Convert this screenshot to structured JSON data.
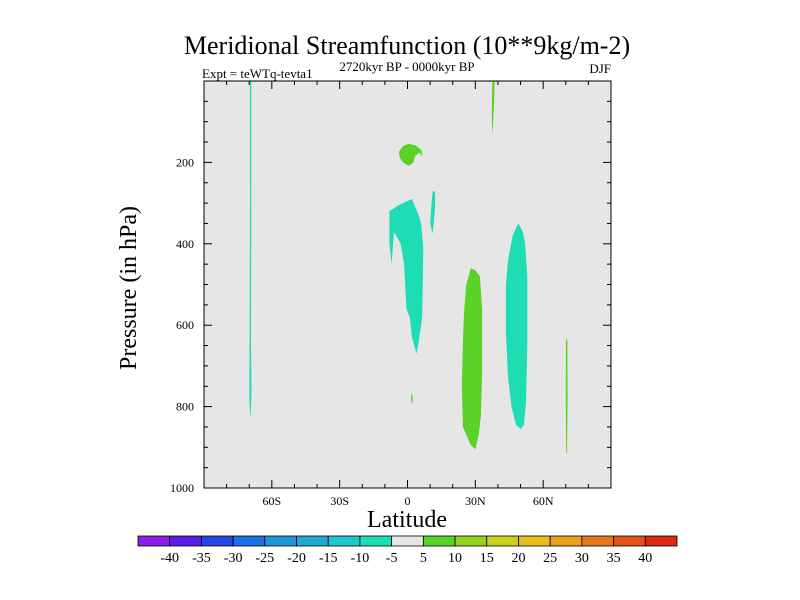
{
  "chart_data": {
    "type": "filled-contour",
    "title": "Meridional Streamfunction (10**9kg/m-2)",
    "left_label": "Expt = teWTq-tevta1",
    "center_label": "2720kyr BP - 0000kyr BP",
    "right_label": "DJF",
    "xlabel": "Latitude",
    "ylabel": "Pressure (in hPa)",
    "xlim": [
      -90,
      90
    ],
    "ylim": [
      1000,
      0
    ],
    "x_ticks": [
      {
        "value": -60,
        "label": "60S"
      },
      {
        "value": -30,
        "label": "30S"
      },
      {
        "value": 0,
        "label": "0"
      },
      {
        "value": 30,
        "label": "30N"
      },
      {
        "value": 60,
        "label": "60N"
      }
    ],
    "y_ticks": [
      {
        "value": 200,
        "label": "200"
      },
      {
        "value": 400,
        "label": "400"
      },
      {
        "value": 600,
        "label": "600"
      },
      {
        "value": 800,
        "label": "800"
      },
      {
        "value": 1000,
        "label": "1000"
      }
    ],
    "background_color": "#e6e6e6",
    "colorbar": {
      "labels": [
        "-40",
        "-35",
        "-30",
        "-25",
        "-20",
        "-15",
        "-10",
        "-5",
        "5",
        "10",
        "15",
        "20",
        "25",
        "30",
        "35",
        "40"
      ],
      "colors": [
        "#8c1ee6",
        "#5a1ee6",
        "#2846e6",
        "#1e6ee6",
        "#1e96dc",
        "#1eaad2",
        "#1ec8c8",
        "#1edcb4",
        "#e6e6e6",
        "#5ad228",
        "#96d21e",
        "#c8d21e",
        "#e6be1e",
        "#e6a01e",
        "#e6781e",
        "#e6501e",
        "#dc2814"
      ]
    },
    "regions": [
      {
        "name": "sh-polar-strip",
        "value_class": "-5",
        "color": "#1edcb4",
        "points": [
          [
            -69.7,
            0
          ],
          [
            -69.1,
            0
          ],
          [
            -69.1,
            290
          ],
          [
            -69.2,
            640
          ],
          [
            -69.0,
            760
          ],
          [
            -69.4,
            830
          ],
          [
            -69.9,
            790
          ],
          [
            -69.9,
            720
          ],
          [
            -69.6,
            290
          ]
        ]
      },
      {
        "name": "tropical-negative-cell",
        "value_class": "-5",
        "color": "#1edcb4",
        "points": [
          [
            -8,
            320
          ],
          [
            -4,
            305
          ],
          [
            2,
            290
          ],
          [
            5,
            330
          ],
          [
            6,
            350
          ],
          [
            7,
            410
          ],
          [
            6.5,
            580
          ],
          [
            5,
            640
          ],
          [
            4,
            670
          ],
          [
            2,
            630
          ],
          [
            1,
            580
          ],
          [
            -0.5,
            560
          ],
          [
            -1.5,
            450
          ],
          [
            -3,
            400
          ],
          [
            -6,
            370
          ],
          [
            -7,
            450
          ],
          [
            -8,
            400
          ]
        ]
      },
      {
        "name": "upper-tropical-sliver",
        "value_class": "-5",
        "color": "#1edcb4",
        "points": [
          [
            11.2,
            270
          ],
          [
            12.2,
            272
          ],
          [
            12.2,
            310
          ],
          [
            11.6,
            350
          ],
          [
            11.1,
            375
          ],
          [
            10.1,
            350
          ],
          [
            10.6,
            300
          ]
        ]
      },
      {
        "name": "nh-midlat-negative-cell",
        "value_class": "-5",
        "color": "#1edcb4",
        "points": [
          [
            49,
            350
          ],
          [
            51,
            370
          ],
          [
            52,
            400
          ],
          [
            53,
            480
          ],
          [
            53,
            650
          ],
          [
            52.4,
            790
          ],
          [
            51.5,
            845
          ],
          [
            50,
            855
          ],
          [
            48,
            845
          ],
          [
            46,
            800
          ],
          [
            44.5,
            730
          ],
          [
            43.5,
            620
          ],
          [
            43.5,
            500
          ],
          [
            44.5,
            440
          ],
          [
            46.5,
            380
          ]
        ]
      },
      {
        "name": "upper-positive-blob",
        "value_class": "5",
        "color": "#5ad228",
        "points": [
          [
            -3.7,
            173
          ],
          [
            -2,
            160
          ],
          [
            0.5,
            154
          ],
          [
            3.5,
            158
          ],
          [
            6.2,
            170
          ],
          [
            6.5,
            186
          ],
          [
            5.5,
            176
          ],
          [
            3.5,
            183
          ],
          [
            2.5,
            201
          ],
          [
            0.5,
            208
          ],
          [
            -1.8,
            201
          ],
          [
            -3.5,
            188
          ]
        ]
      },
      {
        "name": "equator-positive-speck",
        "value_class": "5",
        "color": "#5ad228",
        "points": [
          [
            1.6,
            770
          ],
          [
            2.2,
            770
          ],
          [
            2.2,
            790
          ],
          [
            1.6,
            790
          ]
        ]
      },
      {
        "name": "nh-subtropical-positive-cell",
        "value_class": "5",
        "color": "#5ad228",
        "points": [
          [
            28,
            460
          ],
          [
            30,
            465
          ],
          [
            32,
            480
          ],
          [
            33,
            560
          ],
          [
            33,
            720
          ],
          [
            32.5,
            820
          ],
          [
            31.5,
            870
          ],
          [
            30,
            905
          ],
          [
            28,
            895
          ],
          [
            24.5,
            850
          ],
          [
            24,
            750
          ],
          [
            24.5,
            640
          ],
          [
            25,
            570
          ],
          [
            26,
            500
          ]
        ]
      },
      {
        "name": "nh-top-positive-sliver",
        "value_class": "5",
        "color": "#5ad228",
        "points": [
          [
            37.5,
            0
          ],
          [
            38.5,
            0
          ],
          [
            38.3,
            50
          ],
          [
            37.8,
            110
          ],
          [
            37.4,
            130
          ],
          [
            37.3,
            70
          ]
        ]
      },
      {
        "name": "nh-polar-positive-sliver",
        "value_class": "5",
        "color": "#5ad228",
        "points": [
          [
            70.1,
            630
          ],
          [
            70.7,
            640
          ],
          [
            70.8,
            780
          ],
          [
            70.6,
            915
          ],
          [
            70.2,
            915
          ],
          [
            70.0,
            780
          ]
        ]
      }
    ]
  }
}
